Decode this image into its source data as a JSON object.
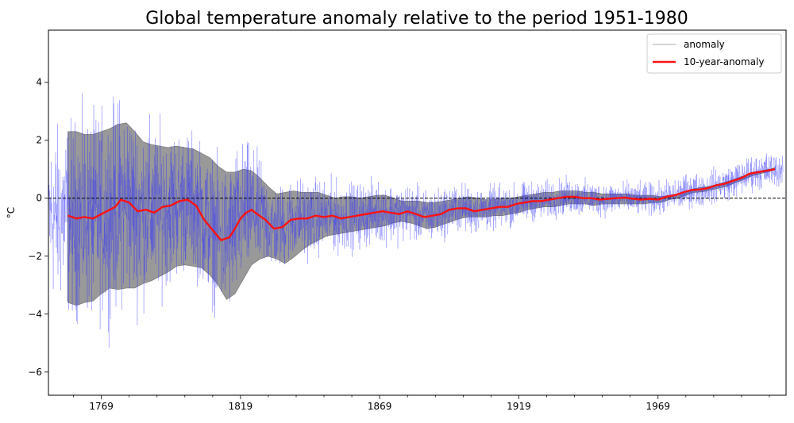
{
  "chart_data": {
    "type": "line",
    "title": "Global temperature anomaly relative to the period 1951-1980",
    "xlabel": "",
    "ylabel": "$^\\circ$C",
    "ylabel_display": "°C",
    "xlim": [
      1750,
      2015
    ],
    "ylim": [
      -6.8,
      5.8
    ],
    "x_ticks": [
      1769,
      1819,
      1869,
      1919,
      1969
    ],
    "x_tick_labels": [
      "1769",
      "1819",
      "1869",
      "1919",
      "1969"
    ],
    "y_ticks": [
      -6,
      -4,
      -2,
      0,
      2,
      4
    ],
    "y_tick_labels": [
      "−6",
      "−4",
      "−2",
      "0",
      "2",
      "4"
    ],
    "grid": false,
    "legend": {
      "position": "top-right",
      "entries": [
        "anomaly",
        "10-year-anomaly"
      ]
    },
    "reference_line": {
      "y": 0,
      "style": "dashed",
      "color": "#000000"
    },
    "colors": {
      "anomaly": "#3333ff",
      "ten_year": "#ff1111",
      "band": "#7f7f7f"
    },
    "series": [
      {
        "name": "10-year-anomaly",
        "x": [
          1757,
          1760,
          1763,
          1766,
          1769,
          1772,
          1774,
          1776,
          1779,
          1782,
          1785,
          1788,
          1791,
          1794,
          1797,
          1800,
          1803,
          1806,
          1809,
          1812,
          1815,
          1817,
          1819,
          1821,
          1823,
          1825,
          1828,
          1831,
          1834,
          1837,
          1840,
          1843,
          1846,
          1849,
          1852,
          1855,
          1858,
          1861,
          1864,
          1867,
          1870,
          1873,
          1876,
          1879,
          1882,
          1885,
          1888,
          1891,
          1894,
          1897,
          1900,
          1903,
          1906,
          1909,
          1912,
          1915,
          1918,
          1921,
          1924,
          1927,
          1930,
          1933,
          1936,
          1939,
          1942,
          1945,
          1948,
          1951,
          1954,
          1957,
          1960,
          1963,
          1966,
          1969,
          1972,
          1975,
          1978,
          1981,
          1984,
          1987,
          1990,
          1993,
          1996,
          1999,
          2002,
          2005,
          2008,
          2011
        ],
        "y": [
          -0.6,
          -0.7,
          -0.65,
          -0.7,
          -0.55,
          -0.4,
          -0.3,
          -0.05,
          -0.15,
          -0.45,
          -0.4,
          -0.5,
          -0.3,
          -0.25,
          -0.1,
          -0.05,
          -0.25,
          -0.75,
          -1.1,
          -1.45,
          -1.35,
          -1.05,
          -0.7,
          -0.5,
          -0.4,
          -0.55,
          -0.75,
          -1.05,
          -1.0,
          -0.75,
          -0.7,
          -0.7,
          -0.6,
          -0.65,
          -0.6,
          -0.7,
          -0.65,
          -0.6,
          -0.55,
          -0.5,
          -0.45,
          -0.5,
          -0.55,
          -0.45,
          -0.55,
          -0.65,
          -0.6,
          -0.55,
          -0.4,
          -0.35,
          -0.35,
          -0.45,
          -0.4,
          -0.35,
          -0.3,
          -0.3,
          -0.2,
          -0.15,
          -0.1,
          -0.1,
          -0.05,
          0.0,
          0.05,
          0.05,
          0.0,
          0.0,
          -0.05,
          -0.02,
          0.0,
          0.02,
          -0.02,
          -0.05,
          -0.02,
          -0.05,
          0.05,
          0.1,
          0.2,
          0.28,
          0.3,
          0.35,
          0.45,
          0.5,
          0.6,
          0.7,
          0.85,
          0.9,
          0.95,
          1.0
        ]
      },
      {
        "name": "uncertainty-band",
        "x": [
          1757,
          1760,
          1763,
          1766,
          1769,
          1772,
          1775,
          1778,
          1781,
          1784,
          1787,
          1790,
          1793,
          1796,
          1799,
          1802,
          1805,
          1808,
          1811,
          1814,
          1817,
          1820,
          1823,
          1826,
          1829,
          1832,
          1835,
          1838,
          1841,
          1844,
          1847,
          1850,
          1853,
          1856,
          1859,
          1862,
          1865,
          1868,
          1871,
          1874,
          1877,
          1880,
          1883,
          1886,
          1889,
          1892,
          1895,
          1898,
          1901,
          1904,
          1907,
          1910,
          1913,
          1916,
          1919,
          1922,
          1925,
          1928,
          1931,
          1934,
          1937,
          1940,
          1943,
          1946,
          1949,
          1952,
          1955,
          1958,
          1961,
          1964,
          1967,
          1970,
          1973,
          1976,
          1979,
          1982,
          1985,
          1988,
          1991,
          1994,
          1997,
          2000,
          2003,
          2006,
          2009,
          2011
        ],
        "upper": [
          2.3,
          2.3,
          2.2,
          2.2,
          2.3,
          2.4,
          2.55,
          2.6,
          2.3,
          1.95,
          1.85,
          1.8,
          1.75,
          1.8,
          1.75,
          1.7,
          1.55,
          1.4,
          1.1,
          0.9,
          0.9,
          1.0,
          0.95,
          0.7,
          0.4,
          0.15,
          0.2,
          0.25,
          0.2,
          0.2,
          0.2,
          0.1,
          0.0,
          0.05,
          0.05,
          0.0,
          0.05,
          0.1,
          0.1,
          0.0,
          -0.1,
          -0.1,
          -0.1,
          -0.15,
          -0.15,
          -0.1,
          -0.05,
          0.0,
          0.05,
          0.0,
          -0.05,
          -0.05,
          0.0,
          0.0,
          0.05,
          0.1,
          0.15,
          0.2,
          0.2,
          0.25,
          0.25,
          0.25,
          0.2,
          0.2,
          0.15,
          0.15,
          0.15,
          0.15,
          0.1,
          0.1,
          0.1,
          0.05,
          0.1,
          0.15,
          0.25,
          0.33,
          0.38,
          0.42,
          0.5,
          0.58,
          0.68,
          0.78,
          0.9,
          0.95,
          1.0,
          1.05
        ],
        "lower": [
          -3.6,
          -3.7,
          -3.6,
          -3.55,
          -3.3,
          -3.1,
          -3.15,
          -3.1,
          -3.1,
          -2.95,
          -2.85,
          -2.7,
          -2.55,
          -2.35,
          -2.3,
          -2.35,
          -2.4,
          -2.65,
          -3.0,
          -3.5,
          -3.3,
          -2.8,
          -2.3,
          -2.1,
          -2.0,
          -2.1,
          -2.25,
          -2.05,
          -1.8,
          -1.6,
          -1.45,
          -1.3,
          -1.25,
          -1.2,
          -1.15,
          -1.1,
          -1.05,
          -1.0,
          -0.95,
          -0.85,
          -0.8,
          -0.85,
          -0.95,
          -1.05,
          -1.0,
          -0.9,
          -0.8,
          -0.7,
          -0.65,
          -0.65,
          -0.65,
          -0.6,
          -0.6,
          -0.55,
          -0.5,
          -0.4,
          -0.35,
          -0.3,
          -0.3,
          -0.25,
          -0.2,
          -0.2,
          -0.2,
          -0.25,
          -0.2,
          -0.2,
          -0.2,
          -0.2,
          -0.2,
          -0.2,
          -0.15,
          -0.15,
          -0.05,
          0.0,
          0.1,
          0.2,
          0.22,
          0.28,
          0.35,
          0.42,
          0.55,
          0.65,
          0.78,
          0.85,
          0.92,
          0.98
        ]
      }
    ],
    "anomaly_series": {
      "name": "anomaly",
      "x_start": 1750,
      "x_end": 2014,
      "samples_per_year": 12,
      "amplitude_by_year": [
        [
          1750,
          2.0
        ],
        [
          1757,
          2.4
        ],
        [
          1775,
          2.6
        ],
        [
          1800,
          1.7
        ],
        [
          1818,
          1.9
        ],
        [
          1830,
          1.1
        ],
        [
          1850,
          0.9
        ],
        [
          1880,
          0.7
        ],
        [
          1920,
          0.5
        ],
        [
          1960,
          0.4
        ],
        [
          2014,
          0.45
        ]
      ]
    }
  }
}
